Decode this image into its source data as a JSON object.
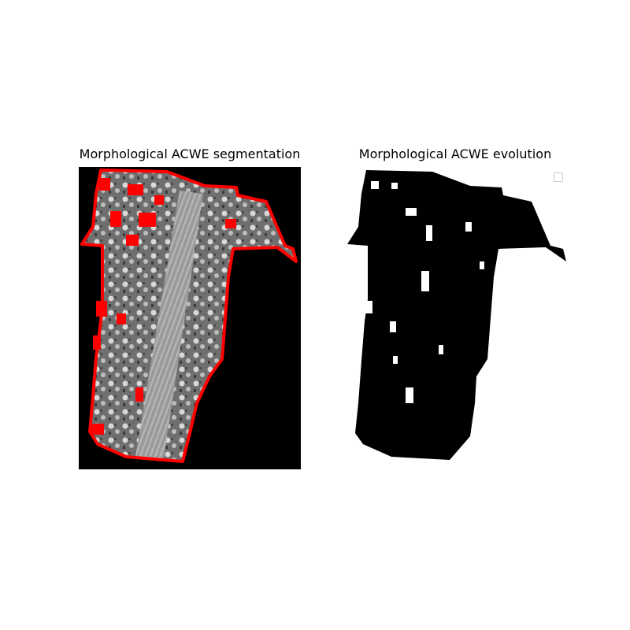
{
  "figure": {
    "panels": [
      {
        "title": "Morphological ACWE segmentation",
        "content": "grayscale image with red contour overlay",
        "contour_color": "#ff0000"
      },
      {
        "title": "Morphological ACWE evolution",
        "content": "binary level-set mask",
        "mask_color": "#000000"
      }
    ]
  }
}
